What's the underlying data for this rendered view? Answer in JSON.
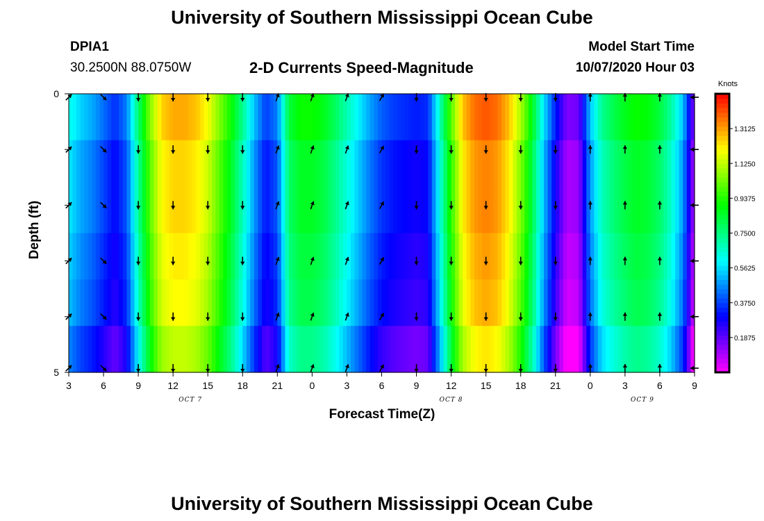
{
  "page": {
    "title_top": "University of Southern Mississippi Ocean Cube",
    "title_bottom": "University of Southern Mississippi Ocean Cube",
    "station_id": "DPIA1",
    "station_coords": "30.2500N 88.0750W",
    "plot_title": "2-D Currents Speed-Magnitude",
    "model_start_label": "Model Start Time",
    "model_start_value": "10/07/2020 Hour 03"
  },
  "chart_data": {
    "type": "heatmap",
    "title": "2-D Currents Speed-Magnitude",
    "xlabel": "Forecast Time(Z)",
    "ylabel": "Depth (ft)",
    "x_hours_range": [
      0,
      54
    ],
    "x_tick_labels": [
      "3",
      "6",
      "9",
      "12",
      "15",
      "18",
      "21",
      "0",
      "3",
      "6",
      "9",
      "12",
      "15",
      "18",
      "21",
      "0",
      "3",
      "6",
      "9"
    ],
    "date_labels": [
      {
        "text": "OCT 7",
        "hour": 10.5
      },
      {
        "text": "OCT 8",
        "hour": 33
      },
      {
        "text": "OCT 9",
        "hour": 49.5
      }
    ],
    "y_range": [
      0,
      5
    ],
    "y_tick_labels": [
      {
        "value": 0,
        "label": "0"
      },
      {
        "value": 1,
        "label": ""
      },
      {
        "value": 2,
        "label": ""
      },
      {
        "value": 3,
        "label": ""
      },
      {
        "value": 4,
        "label": ""
      },
      {
        "value": 5,
        "label": "5"
      }
    ],
    "colorbar": {
      "units": "Knots",
      "min": 0,
      "max": 1.5,
      "ticks": [
        "0.1875",
        "0.3750",
        "0.5625",
        "0.7500",
        "0.9375",
        "1.1250",
        "1.3125"
      ],
      "tick_values": [
        0.1875,
        0.375,
        0.5625,
        0.75,
        0.9375,
        1.125,
        1.3125
      ]
    },
    "speed_profile_hours": [
      0,
      1,
      2,
      3,
      4,
      5,
      6,
      7,
      8,
      9,
      10,
      11,
      12,
      13,
      14,
      15,
      16,
      17,
      18,
      19,
      20,
      21,
      22,
      23,
      24,
      25,
      26,
      27,
      28,
      29,
      30,
      31,
      32,
      33,
      34,
      35,
      36,
      37,
      38,
      39,
      40,
      41,
      42,
      43,
      44,
      45,
      46,
      47,
      48,
      49,
      50,
      51,
      52,
      53,
      54
    ],
    "speed_profile_knots": [
      0.58,
      0.5,
      0.45,
      0.38,
      0.3,
      0.4,
      0.72,
      1.0,
      1.2,
      1.25,
      1.25,
      1.22,
      1.14,
      1.0,
      0.86,
      0.68,
      0.48,
      0.32,
      0.4,
      0.78,
      0.86,
      0.86,
      0.82,
      0.74,
      0.64,
      0.54,
      0.44,
      0.36,
      0.32,
      0.3,
      0.28,
      0.3,
      0.62,
      0.95,
      1.22,
      1.32,
      1.35,
      1.32,
      1.22,
      1.05,
      0.82,
      0.52,
      0.28,
      0.1,
      0.12,
      0.48,
      0.68,
      0.76,
      0.82,
      0.86,
      0.84,
      0.78,
      0.66,
      0.48,
      0.08
    ],
    "layer_offsets_knots": [
      0.05,
      0.0,
      0.0,
      -0.03,
      -0.05,
      -0.12
    ],
    "arrow_hours": [
      0,
      3,
      6,
      9,
      12,
      15,
      18,
      21,
      24,
      27,
      30,
      33,
      36,
      39,
      42,
      45,
      48,
      51,
      54
    ],
    "arrow_directions_deg": [
      45,
      135,
      180,
      180,
      180,
      180,
      20,
      20,
      20,
      30,
      180,
      180,
      180,
      180,
      180,
      0,
      0,
      0,
      270
    ],
    "arrow_rows_depth": [
      0,
      1,
      2,
      3,
      4,
      5
    ]
  }
}
